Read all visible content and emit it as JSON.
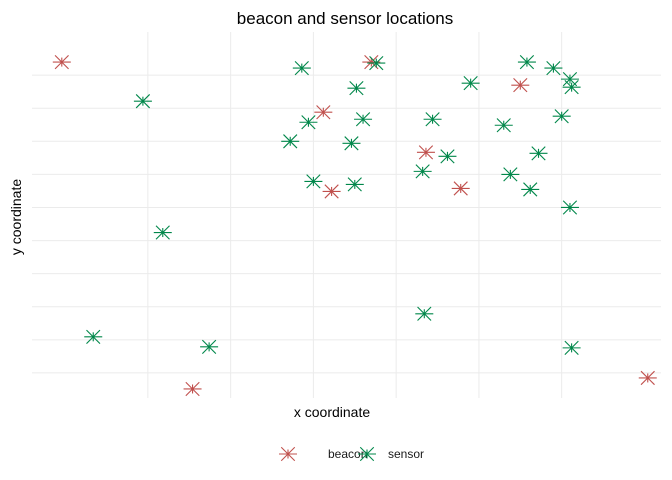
{
  "chart_data": {
    "type": "scatter",
    "title": "beacon and sensor locations",
    "xlabel": "x coordinate",
    "ylabel": "y coordinate",
    "xlim": [
      -7,
      31
    ],
    "ylim": [
      -2.5,
      34
    ],
    "grid": true,
    "legend_position": "bottom",
    "series": [
      {
        "name": "beacon",
        "color": "#c0504d",
        "marker": "asterisk",
        "points": [
          [
            -5.2,
            31
          ],
          [
            2.7,
            -1.6
          ],
          [
            10.6,
            26
          ],
          [
            11.1,
            18.1
          ],
          [
            13.5,
            31
          ],
          [
            16.8,
            22
          ],
          [
            18.9,
            18.4
          ],
          [
            22.5,
            28.7
          ],
          [
            30.2,
            -0.5
          ]
        ]
      },
      {
        "name": "sensor",
        "color": "#00874a",
        "marker": "asterisk",
        "points": [
          [
            -3.3,
            3.6
          ],
          [
            -0.3,
            27.1
          ],
          [
            0.9,
            14
          ],
          [
            3.7,
            2.6
          ],
          [
            8.6,
            23.1
          ],
          [
            9.3,
            30.4
          ],
          [
            9.7,
            25
          ],
          [
            10,
            19.1
          ],
          [
            12.3,
            22.9
          ],
          [
            12.5,
            18.8
          ],
          [
            12.6,
            28.4
          ],
          [
            13,
            25.3
          ],
          [
            13.8,
            30.9
          ],
          [
            16.6,
            20.1
          ],
          [
            16.7,
            5.9
          ],
          [
            17.2,
            25.3
          ],
          [
            18.1,
            21.6
          ],
          [
            19.5,
            28.9
          ],
          [
            21.5,
            24.7
          ],
          [
            21.9,
            19.8
          ],
          [
            22.9,
            31
          ],
          [
            23.1,
            18.3
          ],
          [
            23.6,
            21.9
          ],
          [
            24.5,
            30.4
          ],
          [
            25,
            25.6
          ],
          [
            25.5,
            16.5
          ],
          [
            25.5,
            29.3
          ],
          [
            25.6,
            28.5
          ],
          [
            25.6,
            2.5
          ]
        ]
      }
    ]
  }
}
